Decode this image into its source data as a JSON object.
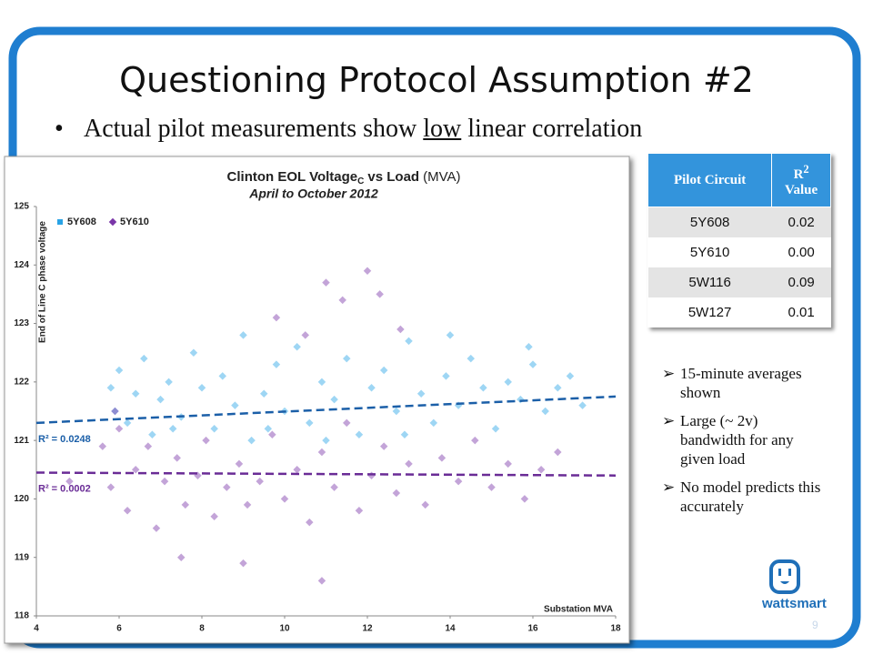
{
  "slide": {
    "title": "Questioning Protocol Assumption #2",
    "bullet": {
      "before": "Actual pilot measurements show",
      "underlined": "low",
      "after": "linear correlation"
    },
    "side_bullets": [
      "15-minute averages shown",
      "Large (~ 2v) bandwidth for any given load",
      "No model predicts this accurately"
    ],
    "logo": "wattsmart",
    "page_number": "9"
  },
  "table": {
    "header": {
      "circuit": "Pilot Circuit",
      "r_symbol": "R",
      "r_superscript": "2",
      "r_label": "Value"
    },
    "rows": [
      [
        "5Y608",
        "0.02"
      ],
      [
        "5Y610",
        "0.00"
      ],
      [
        "5W116",
        "0.09"
      ],
      [
        "5W127",
        "0.01"
      ]
    ]
  },
  "chart_data": {
    "type": "scatter",
    "title": "Clinton EOL Voltage",
    "title_subscript": "C",
    "title_suffix": "vs Load",
    "title_unit": "(MVA)",
    "subtitle": "April to October 2012",
    "y_label": "End of Line C phase voltage",
    "x_label": "Substation MVA",
    "xlim": [
      4,
      18
    ],
    "xticks": [
      4,
      6,
      8,
      10,
      12,
      14,
      16,
      18
    ],
    "ylim": [
      118,
      125
    ],
    "yticks": [
      118,
      119,
      120,
      121,
      122,
      123,
      124,
      125
    ],
    "series": [
      {
        "name": "5Y608",
        "color": "#29a3e6",
        "annotation": "R² = 0.0248",
        "trend_color": "#1b5fa8",
        "trend": {
          "x": [
            4,
            18
          ],
          "y": [
            121.3,
            121.75
          ]
        },
        "x": [
          5.8,
          5.9,
          6.0,
          6.2,
          6.4,
          6.6,
          6.8,
          7.0,
          7.2,
          7.5,
          7.8,
          8.0,
          8.3,
          8.5,
          8.8,
          9.0,
          9.2,
          9.5,
          9.8,
          10.0,
          10.3,
          10.6,
          10.9,
          11.2,
          11.5,
          11.8,
          12.1,
          12.4,
          12.7,
          13.0,
          13.3,
          13.6,
          13.9,
          14.2,
          14.5,
          14.8,
          15.1,
          15.4,
          15.7,
          16.0,
          16.3,
          16.6,
          16.9,
          17.2,
          7.3,
          9.6,
          11.0,
          12.9,
          14.0,
          15.9
        ],
        "values": [
          121.9,
          121.5,
          122.2,
          121.3,
          121.8,
          122.4,
          121.1,
          121.7,
          122.0,
          121.4,
          122.5,
          121.9,
          121.2,
          122.1,
          121.6,
          122.8,
          121.0,
          121.8,
          122.3,
          121.5,
          122.6,
          121.3,
          122.0,
          121.7,
          122.4,
          121.1,
          121.9,
          122.2,
          121.5,
          122.7,
          121.8,
          121.3,
          122.1,
          121.6,
          122.4,
          121.9,
          121.2,
          122.0,
          121.7,
          122.3,
          121.5,
          121.9,
          122.1,
          121.6,
          121.2,
          121.2,
          121.0,
          121.1,
          122.8,
          122.6
        ]
      },
      {
        "name": "5Y610",
        "color": "#7a36a8",
        "annotation": "R² = 0.0002",
        "trend_color": "#6a2c96",
        "trend": {
          "x": [
            4,
            18
          ],
          "y": [
            120.45,
            120.4
          ]
        },
        "x": [
          5.6,
          5.8,
          6.0,
          6.2,
          6.4,
          6.7,
          6.9,
          7.1,
          7.4,
          7.6,
          7.9,
          8.1,
          8.3,
          8.6,
          8.9,
          9.1,
          9.4,
          9.7,
          10.0,
          10.3,
          10.6,
          10.9,
          11.2,
          11.5,
          11.8,
          12.1,
          12.4,
          12.7,
          13.0,
          13.4,
          13.8,
          14.2,
          14.6,
          15.0,
          15.4,
          15.8,
          16.2,
          16.6,
          9.8,
          10.5,
          11.4,
          12.0,
          12.3,
          11.0,
          10.9,
          9.0,
          7.5,
          5.9,
          4.8,
          12.8
        ],
        "values": [
          120.9,
          120.2,
          121.2,
          119.8,
          120.5,
          120.9,
          119.5,
          120.3,
          120.7,
          119.9,
          120.4,
          121.0,
          119.7,
          120.2,
          120.6,
          119.9,
          120.3,
          121.1,
          120.0,
          120.5,
          119.6,
          120.8,
          120.2,
          121.3,
          119.8,
          120.4,
          120.9,
          120.1,
          120.6,
          119.9,
          120.7,
          120.3,
          121.0,
          120.2,
          120.6,
          120.0,
          120.5,
          120.8,
          123.1,
          122.8,
          123.4,
          123.9,
          123.5,
          123.7,
          118.6,
          118.9,
          119.0,
          121.5,
          120.3,
          122.9
        ]
      }
    ]
  }
}
